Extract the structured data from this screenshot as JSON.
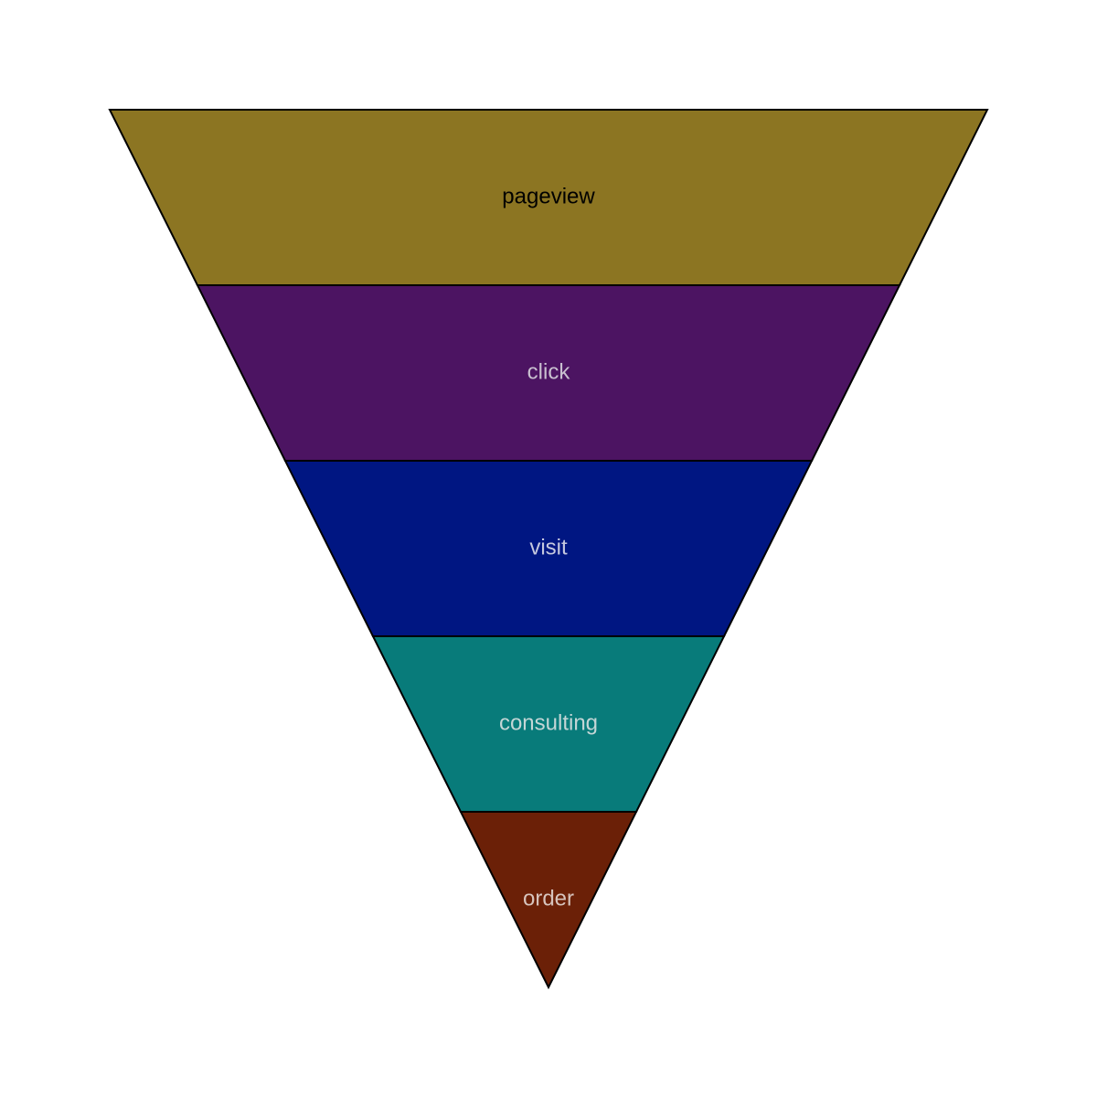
{
  "chart_data": {
    "type": "funnel",
    "title": "",
    "shape": "inverted-triangle",
    "categories": [
      "pageview",
      "click",
      "visit",
      "consulting",
      "order"
    ],
    "stages": [
      {
        "label": "pageview",
        "color": "#8c7522",
        "label_color": "#000000"
      },
      {
        "label": "click",
        "color": "#4c1462",
        "label_color": "#c9c0d0"
      },
      {
        "label": "visit",
        "color": "#001682",
        "label_color": "#c6c9df"
      },
      {
        "label": "consulting",
        "color": "#087b7a",
        "label_color": "#c4d6d6"
      },
      {
        "label": "order",
        "color": "#6b2007",
        "label_color": "#d7c4bd"
      }
    ],
    "stroke_color": "#000000",
    "legend": "none",
    "grid": false
  }
}
